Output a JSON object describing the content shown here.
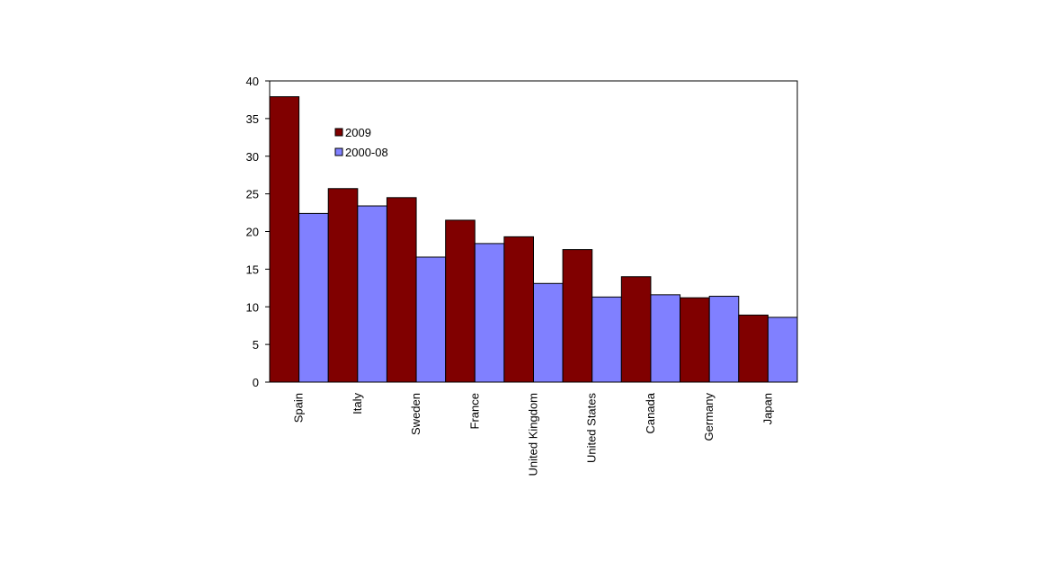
{
  "chart_data": {
    "type": "bar",
    "categories": [
      "Spain",
      "Italy",
      "Sweden",
      "France",
      "United Kingdom",
      "United States",
      "Canada",
      "Germany",
      "Japan"
    ],
    "series": [
      {
        "name": "2009",
        "values": [
          37.9,
          25.7,
          24.5,
          21.5,
          19.3,
          17.6,
          14.0,
          11.2,
          8.9
        ],
        "color": "#800000"
      },
      {
        "name": "2000-08",
        "values": [
          22.4,
          23.4,
          16.6,
          18.4,
          13.1,
          11.3,
          11.6,
          11.4,
          8.6
        ],
        "color": "#8080ff"
      }
    ],
    "ylim": [
      0,
      40
    ],
    "yticks": [
      0,
      5,
      10,
      15,
      20,
      25,
      30,
      35,
      40
    ],
    "grid": false,
    "legend_position": "top-left"
  }
}
